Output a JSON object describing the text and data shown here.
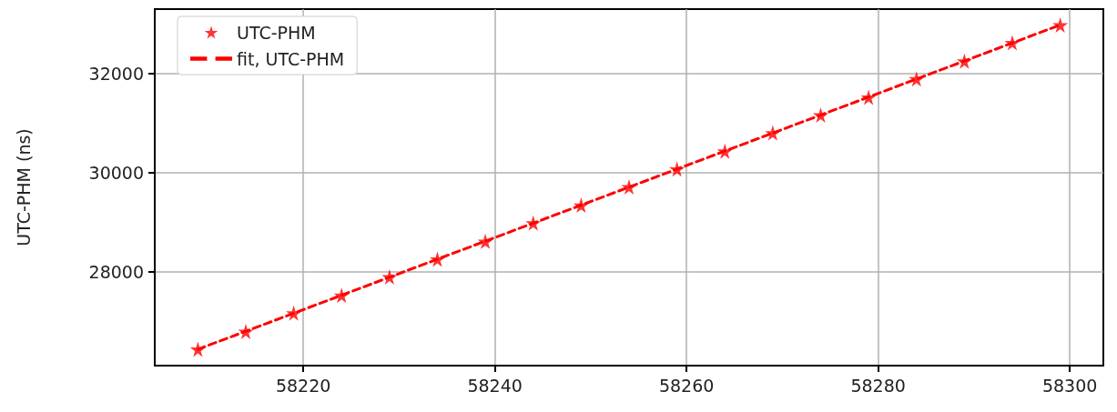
{
  "chart_data": {
    "type": "scatter",
    "ylabel": "UTC-PHM (ns)",
    "xlim": [
      58204.5,
      58303.5
    ],
    "xticks": [
      58220,
      58240,
      58260,
      58280,
      58300
    ],
    "ylim": [
      26100,
      33300
    ],
    "yticks": [
      28000,
      30000,
      32000
    ],
    "grid": true,
    "legend": "top left",
    "series": [
      {
        "name": "UTC-PHM",
        "marker": "star",
        "color": "#ff0000",
        "x": [
          58209,
          58214,
          58219,
          58224,
          58229,
          58234,
          58239,
          58244,
          58249,
          58254,
          58259,
          58264,
          58269,
          58274,
          58279,
          58284,
          58289,
          58294,
          58299
        ],
        "values": [
          26430,
          26790,
          27160,
          27520,
          27890,
          28250,
          28610,
          28980,
          29340,
          29710,
          30070,
          30430,
          30800,
          31160,
          31520,
          31890,
          32250,
          32620,
          32980
        ]
      },
      {
        "name": "fit, UTC-PHM",
        "type": "line",
        "marker": "none",
        "line_style": "dashed",
        "color": "#ff0000",
        "x": [
          58209,
          58299
        ],
        "values": [
          26430,
          32980
        ]
      }
    ]
  }
}
